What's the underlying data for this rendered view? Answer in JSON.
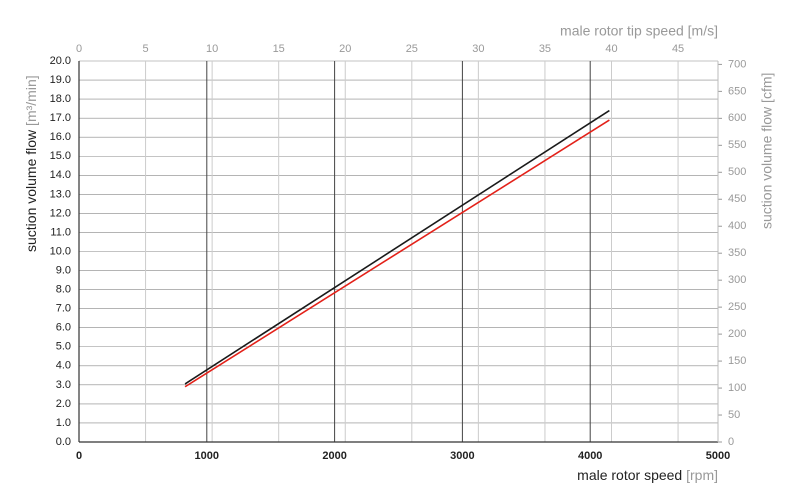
{
  "chart_data": {
    "type": "line",
    "xlabel": "male rotor speed",
    "xlabel_unit": "[rpm]",
    "ylabel": "suction volume flow",
    "ylabel_unit": "[m³/min]",
    "x2label": "male rotor tip speed [m/s]",
    "y2label": "suction volume flow [cfm]",
    "xlim": [
      0,
      5000
    ],
    "xticks": [
      0,
      1000,
      2000,
      3000,
      4000,
      5000
    ],
    "ylim": [
      0,
      20
    ],
    "yticks": [
      {
        "value": 0,
        "label": "0.0"
      },
      {
        "value": 1,
        "label": "1.0"
      },
      {
        "value": 2,
        "label": "2.0"
      },
      {
        "value": 3,
        "label": "3.0"
      },
      {
        "value": 4,
        "label": "4.0"
      },
      {
        "value": 5,
        "label": "5.0"
      },
      {
        "value": 6,
        "label": "6.0"
      },
      {
        "value": 7,
        "label": "7.0"
      },
      {
        "value": 8,
        "label": "8.0"
      },
      {
        "value": 9,
        "label": "9.0"
      },
      {
        "value": 10,
        "label": "10.0"
      },
      {
        "value": 11,
        "label": "11.0"
      },
      {
        "value": 12,
        "label": "12.0"
      },
      {
        "value": 13,
        "label": "13.0"
      },
      {
        "value": 14,
        "label": "14.0"
      },
      {
        "value": 15,
        "label": "15.0"
      },
      {
        "value": 16,
        "label": "16.0"
      },
      {
        "value": 17,
        "label": "17.0"
      },
      {
        "value": 18,
        "label": "18.0"
      },
      {
        "value": 19,
        "label": "19.0"
      },
      {
        "value": 20,
        "label": "20.0"
      }
    ],
    "x2lim": [
      0,
      48
    ],
    "x2ticks": [
      0,
      5,
      10,
      15,
      20,
      25,
      30,
      35,
      40,
      45
    ],
    "y2lim": [
      0,
      706.3
    ],
    "y2ticks": [
      0,
      50,
      100,
      150,
      200,
      250,
      300,
      350,
      400,
      450,
      500,
      550,
      600,
      650,
      700
    ],
    "grid": true,
    "series": [
      {
        "color": "#1a1a1a",
        "x": [
          830,
          4150
        ],
        "values": [
          3.05,
          17.4
        ]
      },
      {
        "color": "#e32119",
        "x": [
          830,
          4150
        ],
        "values": [
          2.9,
          16.9
        ]
      }
    ]
  }
}
